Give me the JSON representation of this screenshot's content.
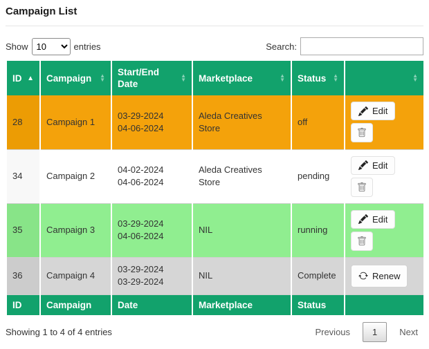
{
  "title": "Campaign List",
  "controls": {
    "show_label": "Show",
    "page_length_options": [
      "10"
    ],
    "page_length_selected": "10",
    "entries_label": "entries",
    "search_label": "Search:",
    "search_value": ""
  },
  "table": {
    "columns": [
      {
        "label": "ID",
        "sort": "asc"
      },
      {
        "label": "Campaign",
        "sort": "both"
      },
      {
        "label": "Start/End Date",
        "sort": "both"
      },
      {
        "label": "Marketplace",
        "sort": "both"
      },
      {
        "label": "Status",
        "sort": "both"
      },
      {
        "label": "",
        "sort": "both"
      }
    ],
    "rows": [
      {
        "id": "28",
        "campaign": "Campaign 1",
        "start_date": "03-29-2024",
        "end_date": "04-06-2024",
        "marketplace": "Aleda Creatives Store",
        "status": "off",
        "actions": [
          "edit",
          "delete"
        ],
        "bg": "#F4A20B",
        "id_bg": "#EC9C04"
      },
      {
        "id": "34",
        "campaign": "Campaign 2",
        "start_date": "04-02-2024",
        "end_date": "04-06-2024",
        "marketplace": "Aleda Creatives Store",
        "status": "pending",
        "actions": [
          "edit",
          "delete"
        ],
        "bg": "#FFFFFF",
        "id_bg": "#F8F8F8"
      },
      {
        "id": "35",
        "campaign": "Campaign 3",
        "start_date": "03-29-2024",
        "end_date": "04-06-2024",
        "marketplace": "NIL",
        "status": "running",
        "actions": [
          "edit",
          "delete"
        ],
        "bg": "#90EE90",
        "id_bg": "#88E488"
      },
      {
        "id": "36",
        "campaign": "Campaign 4",
        "start_date": "03-29-2024",
        "end_date": "03-29-2024",
        "marketplace": "NIL",
        "status": "Complete",
        "actions": [
          "renew"
        ],
        "bg": "#D6D6D6",
        "id_bg": "#CCCCCC"
      }
    ],
    "footer_columns": [
      "ID",
      "Campaign",
      "Date",
      "Marketplace",
      "Status",
      ""
    ]
  },
  "buttons": {
    "edit": "Edit",
    "renew": "Renew"
  },
  "icons": {
    "edit": "pencil-icon",
    "delete": "trash-icon",
    "renew": "refresh-icon",
    "sort_asc": "caret-up-icon",
    "sort_both": "caret-up-down-icon"
  },
  "status_info": "Showing 1 to 4 of 4 entries",
  "pagination": {
    "previous": "Previous",
    "current": "1",
    "next": "Next"
  },
  "colors": {
    "header_bg": "#12A26C",
    "header_text": "#FFFFFF",
    "row_off": "#F4A20B",
    "row_pending": "#FFFFFF",
    "row_running": "#90EE90",
    "row_complete": "#D6D6D6"
  }
}
